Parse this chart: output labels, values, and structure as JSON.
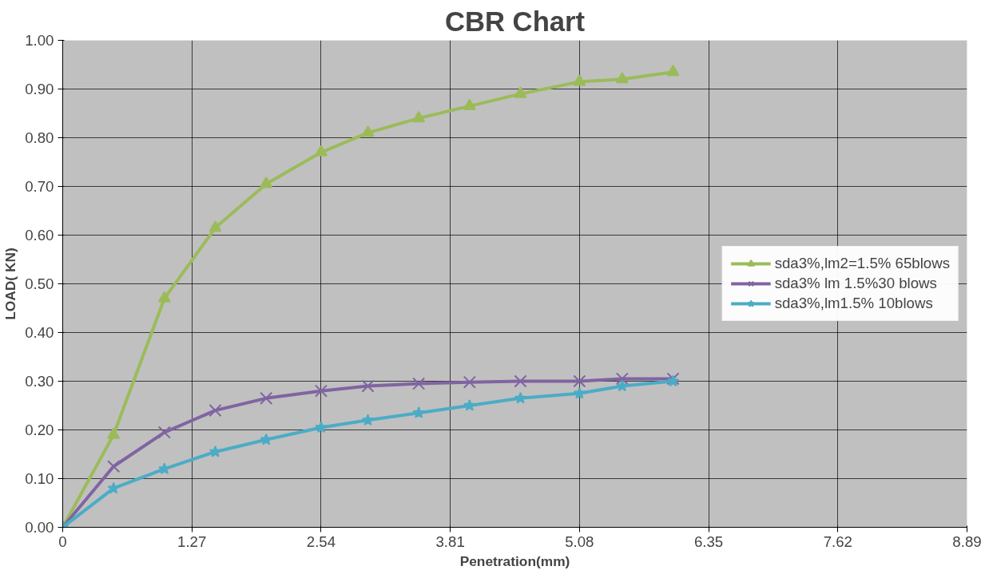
{
  "chart_data": {
    "type": "line",
    "title": "CBR Chart",
    "xlabel": "Penetration(mm)",
    "ylabel": "LOAD( KN)",
    "x": [
      0,
      0.5,
      1,
      1.5,
      2,
      2.54,
      3,
      3.5,
      4,
      4.5,
      5.08,
      5.5,
      6
    ],
    "series": [
      {
        "name": "sda3%,lm2=1.5% 65blows",
        "color": "#9bbb59",
        "marker": "triangle",
        "values": [
          0,
          0.19,
          0.47,
          0.615,
          0.705,
          0.77,
          0.81,
          0.84,
          0.865,
          0.89,
          0.915,
          0.92,
          0.935
        ]
      },
      {
        "name": "sda3% lm 1.5%30 blows",
        "color": "#8064a2",
        "marker": "cross",
        "values": [
          0,
          0.125,
          0.195,
          0.24,
          0.265,
          0.28,
          0.29,
          0.295,
          0.298,
          0.3,
          0.3,
          0.305,
          0.305
        ]
      },
      {
        "name": "sda3%,lm1.5% 10blows",
        "color": "#4bacc6",
        "marker": "star",
        "values": [
          0,
          0.08,
          0.12,
          0.155,
          0.18,
          0.205,
          0.22,
          0.235,
          0.25,
          0.265,
          0.275,
          0.29,
          0.3
        ]
      }
    ],
    "xlim": [
      0,
      8.89
    ],
    "xticks": [
      0,
      1.27,
      2.54,
      3.81,
      5.08,
      6.35,
      7.62,
      8.89
    ],
    "ylim": [
      0,
      1
    ],
    "yticks": [
      {
        "value": 0,
        "label": "0.00"
      },
      {
        "value": 0.1,
        "label": "0.10"
      },
      {
        "value": 0.2,
        "label": "0.20"
      },
      {
        "value": 0.3,
        "label": "0.30"
      },
      {
        "value": 0.4,
        "label": "0.40"
      },
      {
        "value": 0.5,
        "label": "0.50"
      },
      {
        "value": 0.6,
        "label": "0.60"
      },
      {
        "value": 0.7,
        "label": "0.70"
      },
      {
        "value": 0.8,
        "label": "0.80"
      },
      {
        "value": 0.9,
        "label": "0.90"
      },
      {
        "value": 1,
        "label": "1.00"
      }
    ],
    "grid": true,
    "legend": "right",
    "line_style": "solid"
  }
}
